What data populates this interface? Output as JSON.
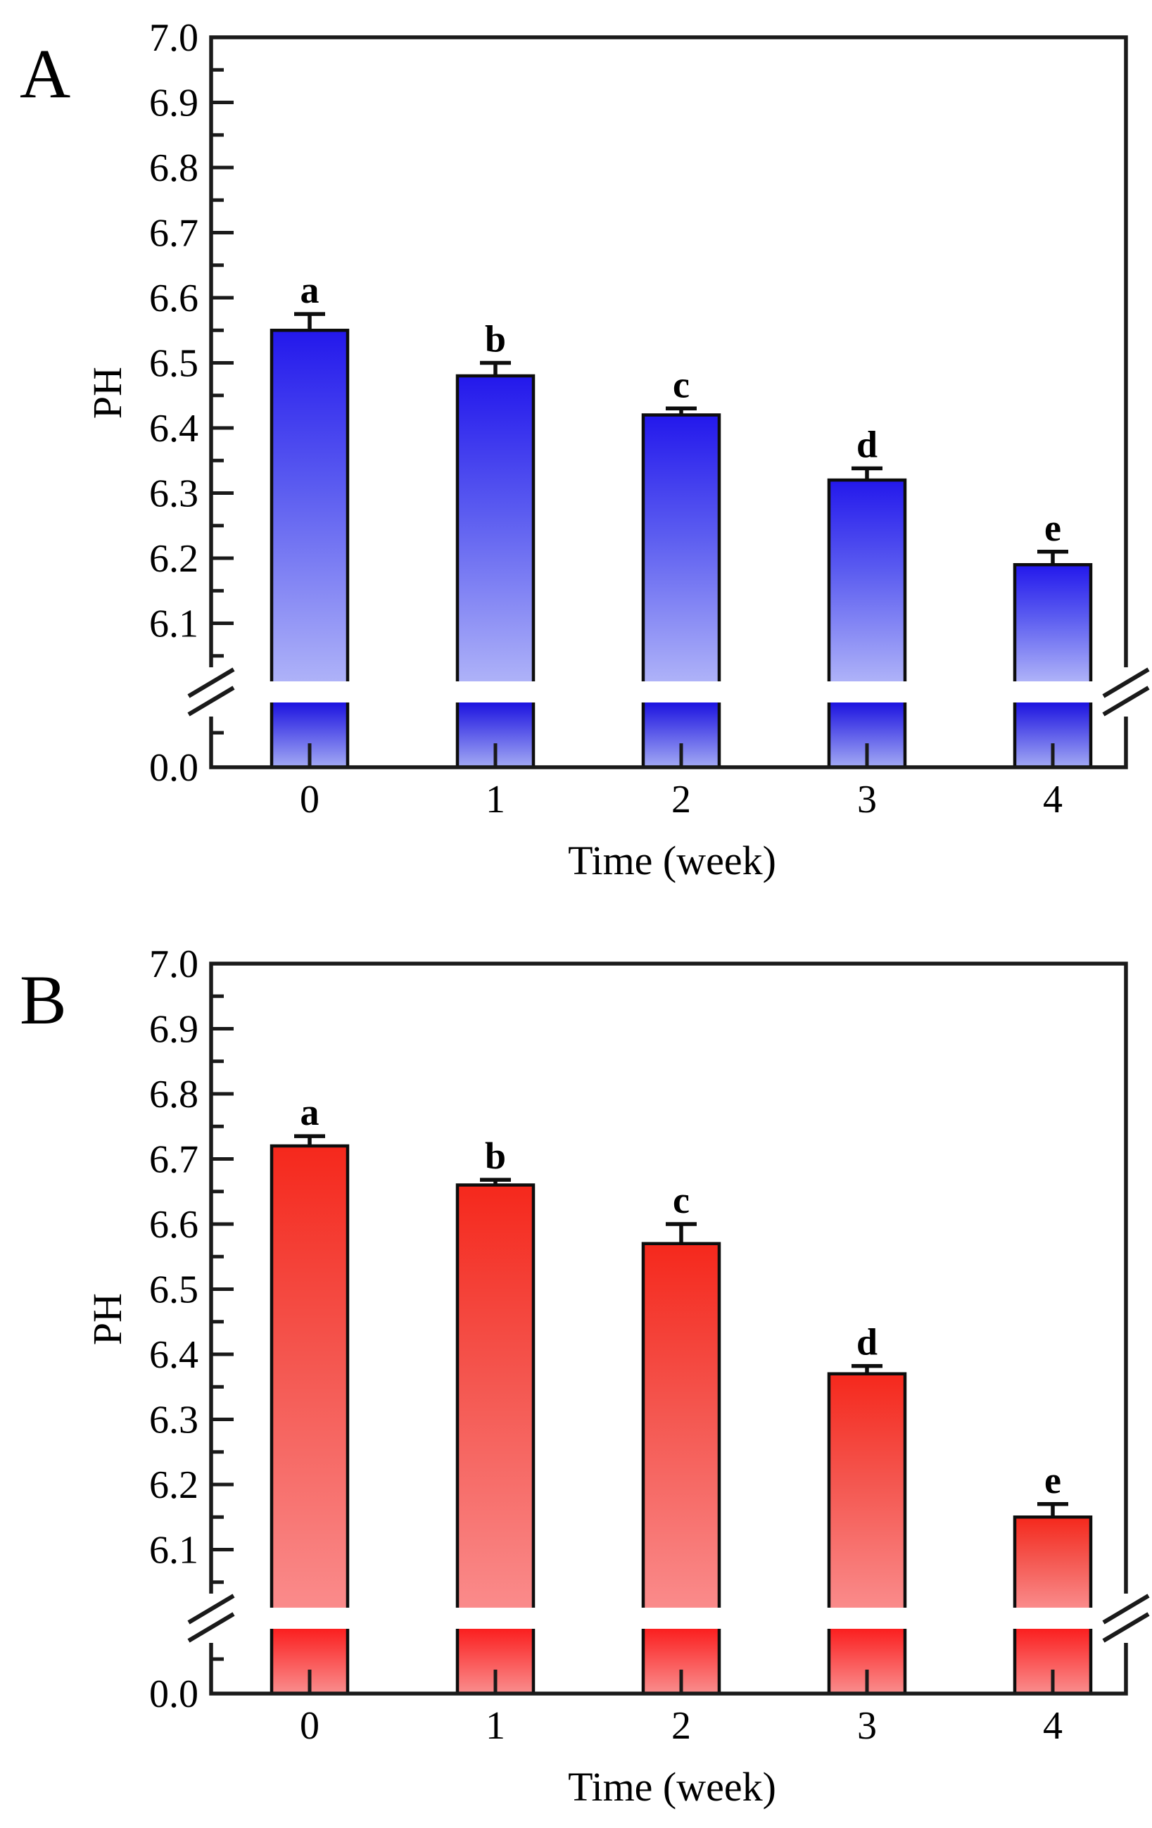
{
  "figure": {
    "panel_labels": [
      "A",
      "B"
    ]
  },
  "chart_data": [
    {
      "type": "bar",
      "panel": "A",
      "xlabel": "Time (week)",
      "ylabel": "PH",
      "categories": [
        "0",
        "1",
        "2",
        "3",
        "4"
      ],
      "values": [
        6.55,
        6.48,
        6.42,
        6.32,
        6.19
      ],
      "errors": [
        0.025,
        0.02,
        0.01,
        0.018,
        0.02
      ],
      "sig_letters": [
        "a",
        "b",
        "c",
        "d",
        "e"
      ],
      "yticks": [
        "7.0",
        "6.9",
        "6.8",
        "6.7",
        "6.6",
        "6.5",
        "6.4",
        "6.3",
        "6.2",
        "6.1"
      ],
      "ybase_label": "0.0",
      "ylim_display": [
        6.05,
        7.0
      ],
      "y_axis_break": true,
      "grid": false,
      "bar_colors": {
        "top": "#2318ec",
        "mid": "#5b5cf0",
        "bottom": "#aeb2f8",
        "lower_top": "#1c13e0",
        "lower_bottom": "#a3aaf4"
      },
      "outline_color": "#0d0d0d",
      "axis_color": "#1a1a1a"
    },
    {
      "type": "bar",
      "panel": "B",
      "xlabel": "Time (week)",
      "ylabel": "PH",
      "categories": [
        "0",
        "1",
        "2",
        "3",
        "4"
      ],
      "values": [
        6.72,
        6.66,
        6.57,
        6.37,
        6.15
      ],
      "errors": [
        0.015,
        0.008,
        0.03,
        0.012,
        0.02
      ],
      "sig_letters": [
        "a",
        "b",
        "c",
        "d",
        "e"
      ],
      "yticks": [
        "7.0",
        "6.9",
        "6.8",
        "6.7",
        "6.6",
        "6.5",
        "6.4",
        "6.3",
        "6.2",
        "6.1"
      ],
      "ybase_label": "0.0",
      "ylim_display": [
        6.05,
        7.0
      ],
      "y_axis_break": true,
      "grid": false,
      "bar_colors": {
        "top": "#f5281c",
        "mid": "#f4554e",
        "bottom": "#fa8b8b",
        "lower_top": "#fb1f1f",
        "lower_bottom": "#f98e8e"
      },
      "outline_color": "#0d0d0d",
      "axis_color": "#1a1a1a"
    }
  ]
}
